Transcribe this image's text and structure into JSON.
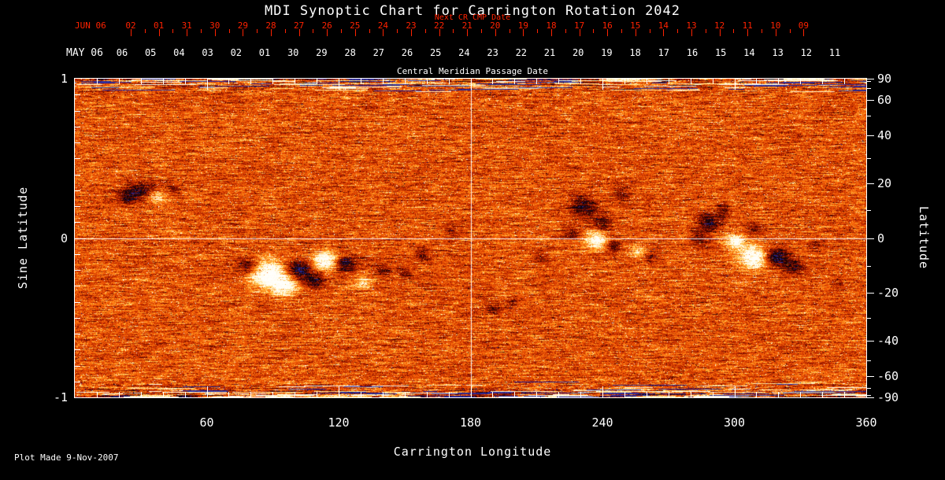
{
  "footer": {
    "plot_made": "Plot Made  9-Nov-2007"
  },
  "colors": {
    "background": "#000000",
    "foreground": "#ffffff",
    "date_red": "#ff2200"
  },
  "chart_data": {
    "type": "heatmap",
    "title": "MDI Synoptic Chart for Carrington Rotation 2042",
    "description": "SOHO/MDI magnetogram synoptic map for Carrington rotation 2042. Orange mottled background is quiet Sun magnetic noise; white patches are positive magnetic polarity active regions, black/dark patches are negative polarity. Streaky noisy bands appear at the polar (top/bottom) edges.",
    "x_axis": {
      "label": "Carrington Longitude",
      "range": [
        0,
        360
      ],
      "major_ticks": [
        60,
        120,
        180,
        240,
        300,
        360
      ],
      "minor_tick_step": 10
    },
    "y_axis_left": {
      "label": "Sine Latitude",
      "range": [
        -1,
        1
      ],
      "major_ticks": [
        1,
        0,
        -1
      ],
      "minor_tick_step": 0.1
    },
    "y_axis_right": {
      "label": "Latitude",
      "ticks": [
        90,
        60,
        40,
        20,
        0,
        -20,
        -40,
        -60,
        -90
      ],
      "minor_ticks": [
        80,
        70,
        50,
        30,
        10,
        -10,
        -30,
        -50,
        -70,
        -80
      ]
    },
    "top_axis_next_cr": {
      "label": "Next CR CMP Date",
      "month_label": "JUN 06",
      "dates": [
        "02",
        "01",
        "31",
        "30",
        "29",
        "28",
        "27",
        "26",
        "25",
        "24",
        "23",
        "22",
        "21",
        "20",
        "19",
        "18",
        "17",
        "16",
        "15",
        "14",
        "13",
        "12",
        "11",
        "10",
        "09"
      ]
    },
    "top_axis_cmp": {
      "label": "Central Meridian Passage Date",
      "month_label": "MAY 06",
      "dates": [
        "06",
        "05",
        "04",
        "03",
        "02",
        "01",
        "30",
        "29",
        "28",
        "27",
        "26",
        "25",
        "24",
        "23",
        "22",
        "21",
        "20",
        "19",
        "18",
        "17",
        "16",
        "15",
        "14",
        "13",
        "12",
        "11"
      ]
    },
    "crosshair": {
      "longitude": 180,
      "sine_latitude": 0
    },
    "palette": {
      "quiet_sun": [
        "#960500",
        "#d03700",
        "#fa6408",
        "#ffa428"
      ],
      "positive_polarity": "#fffae6",
      "negative_polarity": "#060208",
      "polar_noise_blue": "#32328c"
    },
    "active_regions": [
      {
        "lon": 30,
        "slat": 0.3,
        "rlon": 7,
        "rslat": 0.055,
        "amp": -0.95
      },
      {
        "lon": 37,
        "slat": 0.26,
        "rlon": 5,
        "rslat": 0.045,
        "amp": 0.8
      },
      {
        "lon": 23,
        "slat": 0.25,
        "rlon": 4,
        "rslat": 0.04,
        "amp": -0.6
      },
      {
        "lon": 45,
        "slat": 0.31,
        "rlon": 3.5,
        "rslat": 0.035,
        "amp": -0.55
      },
      {
        "lon": 79,
        "slat": -0.17,
        "rlon": 5,
        "rslat": 0.05,
        "amp": -0.85
      },
      {
        "lon": 87,
        "slat": -0.22,
        "rlon": 8,
        "rslat": 0.085,
        "amp": 1.35
      },
      {
        "lon": 95,
        "slat": -0.3,
        "rlon": 6,
        "rslat": 0.06,
        "amp": 1.1
      },
      {
        "lon": 102,
        "slat": -0.2,
        "rlon": 5.5,
        "rslat": 0.055,
        "amp": -1.15
      },
      {
        "lon": 109,
        "slat": -0.27,
        "rlon": 4.5,
        "rslat": 0.05,
        "amp": -0.85
      },
      {
        "lon": 114,
        "slat": -0.14,
        "rlon": 6,
        "rslat": 0.055,
        "amp": 1.25
      },
      {
        "lon": 123,
        "slat": -0.16,
        "rlon": 5,
        "rslat": 0.05,
        "amp": -1.05
      },
      {
        "lon": 131,
        "slat": -0.28,
        "rlon": 4,
        "rslat": 0.04,
        "amp": 0.55
      },
      {
        "lon": 140,
        "slat": -0.2,
        "rlon": 3.5,
        "rslat": 0.04,
        "amp": -0.6
      },
      {
        "lon": 150,
        "slat": -0.22,
        "rlon": 3,
        "rslat": 0.035,
        "amp": -0.5
      },
      {
        "lon": 158,
        "slat": -0.1,
        "rlon": 3,
        "rslat": 0.04,
        "amp": -0.55
      },
      {
        "lon": 171,
        "slat": 0.05,
        "rlon": 3,
        "rslat": 0.035,
        "amp": -0.4
      },
      {
        "lon": 190,
        "slat": -0.44,
        "rlon": 4,
        "rslat": 0.04,
        "amp": -0.5
      },
      {
        "lon": 199,
        "slat": -0.41,
        "rlon": 3,
        "rslat": 0.035,
        "amp": -0.45
      },
      {
        "lon": 212,
        "slat": -0.12,
        "rlon": 3,
        "rslat": 0.04,
        "amp": -0.45
      },
      {
        "lon": 231,
        "slat": 0.2,
        "rlon": 6,
        "rslat": 0.075,
        "amp": -0.85
      },
      {
        "lon": 240,
        "slat": 0.1,
        "rlon": 4.5,
        "rslat": 0.055,
        "amp": -0.65
      },
      {
        "lon": 248,
        "slat": 0.28,
        "rlon": 4,
        "rslat": 0.05,
        "amp": -0.55
      },
      {
        "lon": 226,
        "slat": 0.03,
        "rlon": 3.5,
        "rslat": 0.045,
        "amp": -0.5
      },
      {
        "lon": 237,
        "slat": -0.01,
        "rlon": 5,
        "rslat": 0.055,
        "amp": 1.15
      },
      {
        "lon": 245,
        "slat": -0.04,
        "rlon": 3.5,
        "rslat": 0.045,
        "amp": -0.7
      },
      {
        "lon": 256,
        "slat": -0.08,
        "rlon": 3.5,
        "rslat": 0.04,
        "amp": 0.6
      },
      {
        "lon": 262,
        "slat": -0.12,
        "rlon": 3,
        "rslat": 0.035,
        "amp": -0.5
      },
      {
        "lon": 284,
        "slat": 0.0,
        "rlon": 4,
        "rslat": 0.045,
        "amp": -0.6
      },
      {
        "lon": 288,
        "slat": 0.1,
        "rlon": 5,
        "rslat": 0.055,
        "amp": -0.9
      },
      {
        "lon": 295,
        "slat": 0.17,
        "rlon": 3.5,
        "rslat": 0.04,
        "amp": -0.5
      },
      {
        "lon": 300,
        "slat": -0.02,
        "rlon": 5,
        "rslat": 0.05,
        "amp": 0.95
      },
      {
        "lon": 309,
        "slat": -0.12,
        "rlon": 7,
        "rslat": 0.07,
        "amp": 1.35
      },
      {
        "lon": 319,
        "slat": -0.12,
        "rlon": 6,
        "rslat": 0.06,
        "amp": -1.15
      },
      {
        "lon": 327,
        "slat": -0.18,
        "rlon": 4.5,
        "rslat": 0.045,
        "amp": -0.8
      },
      {
        "lon": 309,
        "slat": 0.07,
        "rlon": 3,
        "rslat": 0.035,
        "amp": -0.5
      },
      {
        "lon": 337,
        "slat": -0.05,
        "rlon": 3,
        "rslat": 0.035,
        "amp": -0.45
      },
      {
        "lon": 347,
        "slat": -0.28,
        "rlon": 3,
        "rslat": 0.035,
        "amp": -0.4
      }
    ]
  }
}
